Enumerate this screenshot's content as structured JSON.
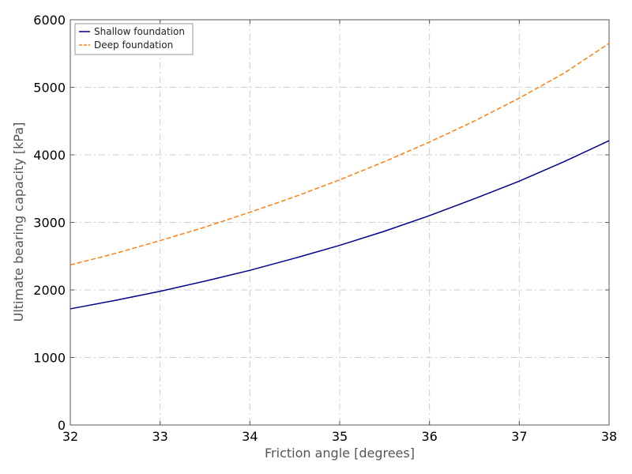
{
  "chart_data": {
    "type": "line",
    "title": "",
    "xlabel": "Friction angle [degrees]",
    "ylabel": "Ultimate bearing capacity [kPa]",
    "xlim": [
      32,
      38
    ],
    "ylim": [
      0,
      6000
    ],
    "x_ticks": [
      32,
      33,
      34,
      35,
      36,
      37,
      38
    ],
    "y_ticks": [
      0,
      1000,
      2000,
      3000,
      4000,
      5000,
      6000
    ],
    "x_tick_labels": [
      "32",
      "33",
      "34",
      "35",
      "36",
      "37",
      "38"
    ],
    "y_tick_labels": [
      "0",
      "1000",
      "2000",
      "3000",
      "4000",
      "5000",
      "6000"
    ],
    "grid": true,
    "legend_position": "top-left",
    "x": [
      32,
      32.5,
      33,
      33.5,
      34,
      34.5,
      35,
      35.5,
      36,
      36.5,
      37,
      37.5,
      38
    ],
    "series": [
      {
        "name": "Shallow foundation",
        "color": "#00008b",
        "line_style": "solid",
        "values": [
          1720,
          1845,
          1980,
          2130,
          2290,
          2470,
          2660,
          2870,
          3100,
          3350,
          3610,
          3900,
          4210
        ]
      },
      {
        "name": "Deep foundation",
        "color": "#ff7f0e",
        "line_style": "dashed",
        "values": [
          2370,
          2540,
          2730,
          2930,
          3150,
          3380,
          3630,
          3900,
          4190,
          4500,
          4840,
          5210,
          5650
        ]
      }
    ]
  }
}
